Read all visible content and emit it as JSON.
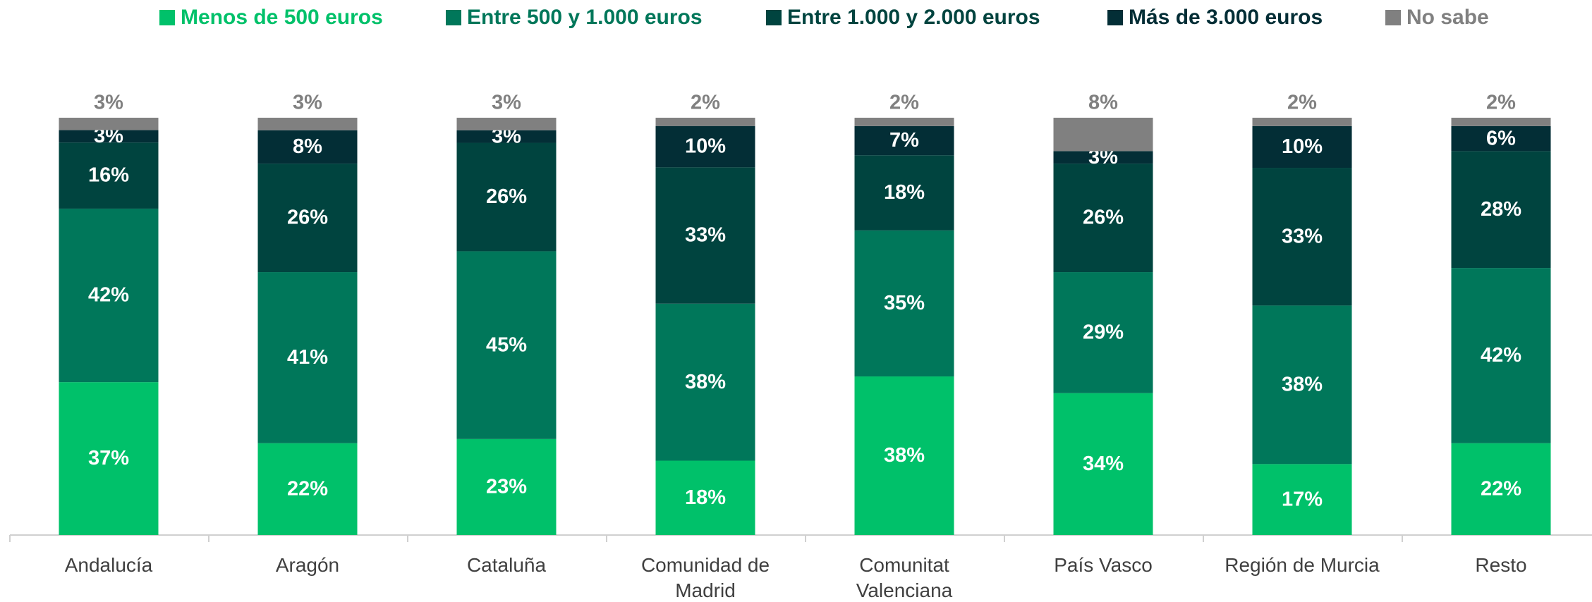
{
  "chart_data": {
    "type": "bar",
    "stack": "percent",
    "categories": [
      "Andalucía",
      "Aragón",
      "Cataluña",
      "Comunidad de Madrid",
      "Comunitat Valenciana",
      "País Vasco",
      "Región de Murcia",
      "Resto"
    ],
    "series": [
      {
        "name": "Menos de 500 euros",
        "color": "#00c16a",
        "values": [
          37,
          22,
          23,
          18,
          38,
          34,
          17,
          22
        ],
        "value_labels": [
          "37%",
          "22%",
          "23%",
          "18%",
          "38%",
          "34%",
          "17%",
          "22%"
        ]
      },
      {
        "name": "Entre 500 y 1.000 euros",
        "color": "#00775a",
        "values": [
          42,
          41,
          45,
          38,
          35,
          29,
          38,
          42
        ],
        "value_labels": [
          "42%",
          "41%",
          "45%",
          "38%",
          "35%",
          "29%",
          "38%",
          "42%"
        ]
      },
      {
        "name": "Entre 1.000 y 2.000 euros",
        "color": "#00443f",
        "values": [
          16,
          26,
          26,
          33,
          18,
          26,
          33,
          28
        ],
        "value_labels": [
          "16%",
          "26%",
          "26%",
          "33%",
          "18%",
          "26%",
          "33%",
          "28%"
        ]
      },
      {
        "name": "Más de 3.000 euros",
        "color": "#032e36",
        "values": [
          3,
          8,
          3,
          10,
          7,
          3,
          10,
          6
        ],
        "value_labels": [
          "3%",
          "8%",
          "3%",
          "10%",
          "7%",
          "3%",
          "10%",
          "6%"
        ]
      },
      {
        "name": "No sabe",
        "color": "#808080",
        "values": [
          3,
          3,
          3,
          2,
          2,
          8,
          2,
          2
        ],
        "value_labels": [
          "3%",
          "3%",
          "3%",
          "2%",
          "2%",
          "8%",
          "2%",
          "2%"
        ]
      }
    ],
    "legend": "top"
  }
}
